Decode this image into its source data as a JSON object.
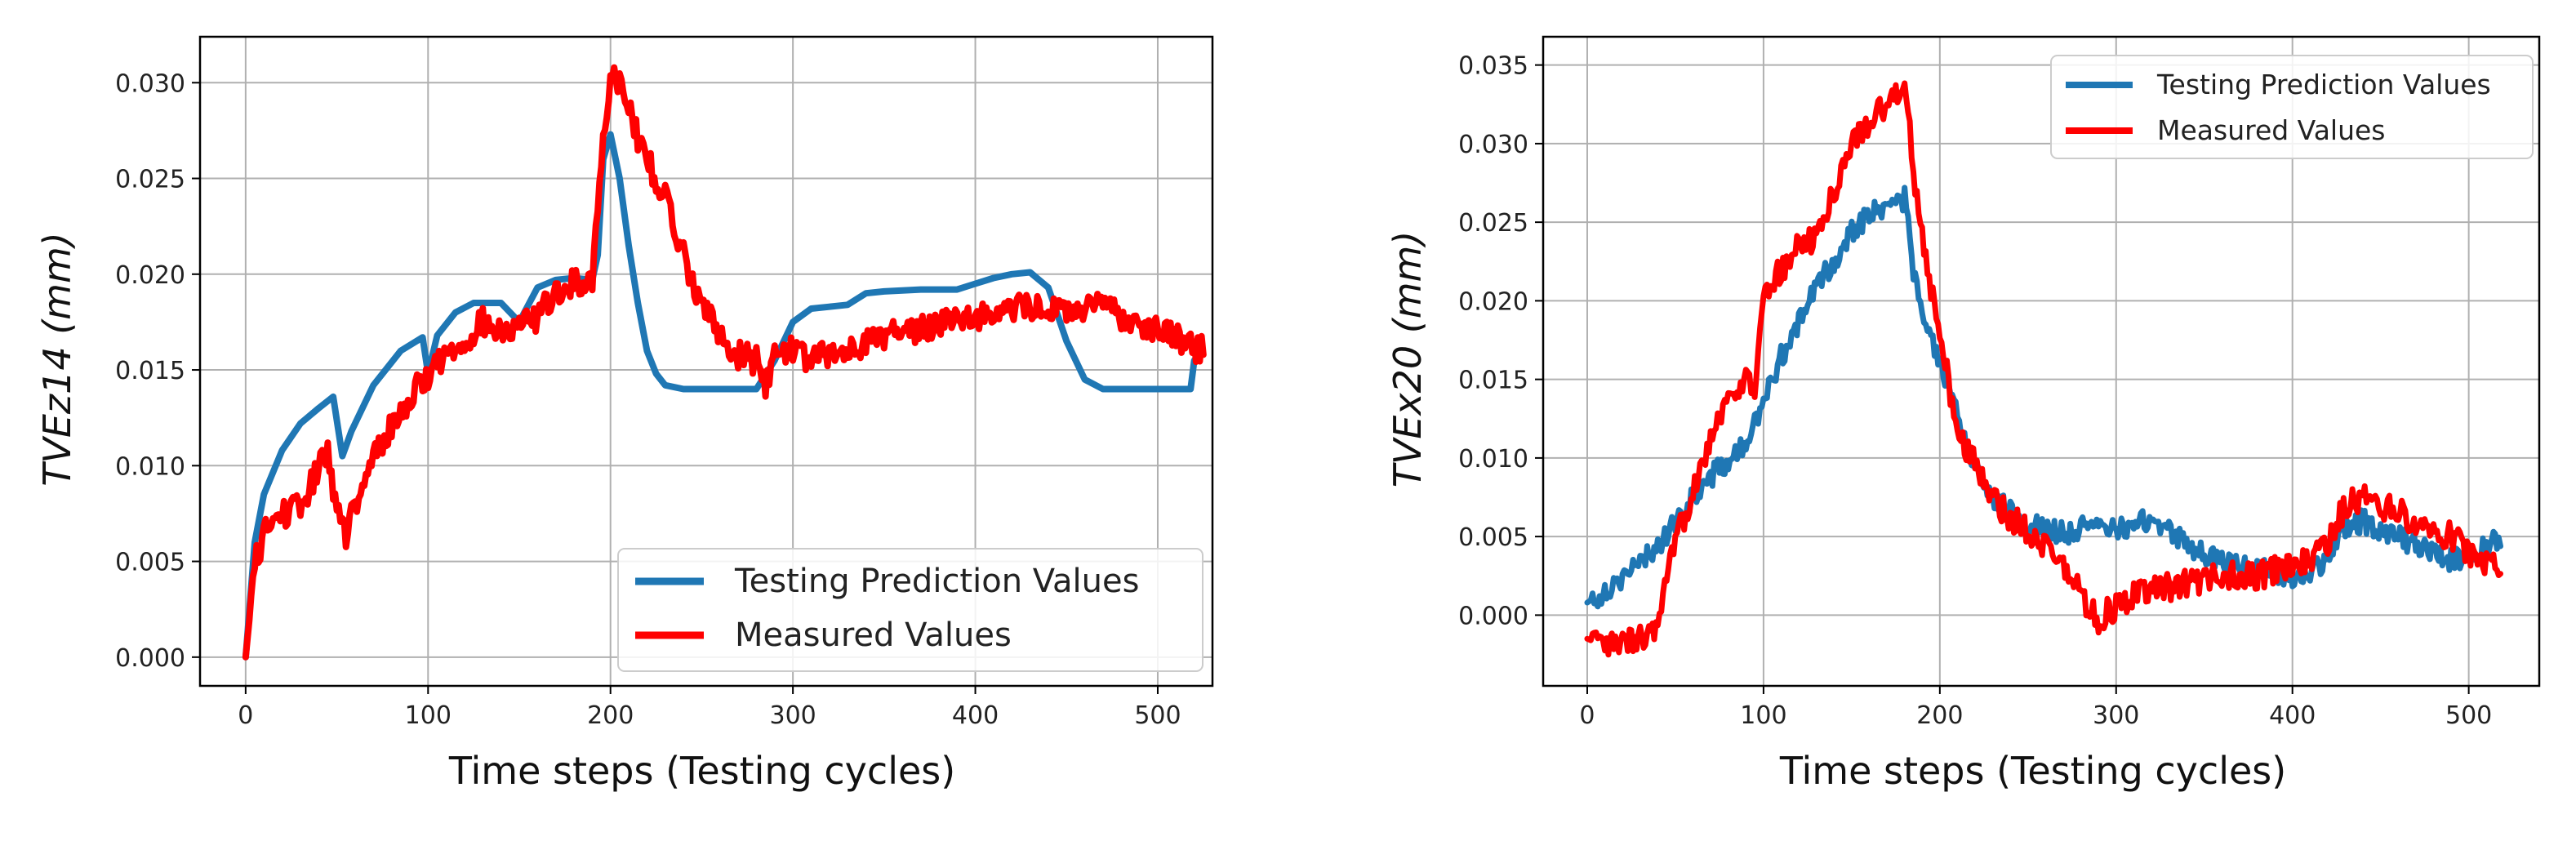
{
  "chart_data": [
    {
      "type": "line",
      "xlabel": "Time steps (Testing cycles)",
      "ylabel": "TVEz14 (mm)",
      "ylabel_base": "TVEz14",
      "ylabel_unit": "(mm)",
      "xlim": [
        -25,
        530
      ],
      "ylim": [
        -0.0015,
        0.0324
      ],
      "xticks": [
        0,
        100,
        200,
        300,
        400,
        500
      ],
      "xtick_labels": [
        "0",
        "100",
        "200",
        "300",
        "400",
        "500"
      ],
      "yticks": [
        0,
        0.005,
        0.01,
        0.015,
        0.02,
        0.025,
        0.03
      ],
      "ytick_labels": [
        "0.000",
        "0.005",
        "0.010",
        "0.015",
        "0.020",
        "0.025",
        "0.030"
      ],
      "grid": true,
      "legend_position": "lower-right",
      "series": [
        {
          "name": "Testing Prediction Values",
          "color": "#1f77b4",
          "x": [
            0,
            5,
            10,
            20,
            30,
            40,
            48,
            53,
            58,
            70,
            85,
            97,
            100,
            105,
            115,
            125,
            140,
            150,
            160,
            170,
            180,
            190,
            193,
            196,
            200,
            205,
            210,
            215,
            220,
            225,
            230,
            240,
            250,
            260,
            270,
            280,
            290,
            300,
            310,
            320,
            330,
            340,
            350,
            370,
            390,
            400,
            410,
            420,
            430,
            440,
            450,
            460,
            470,
            480,
            490,
            500,
            510,
            515,
            518,
            520,
            523
          ],
          "values": [
            0.0,
            0.006,
            0.0085,
            0.0108,
            0.0122,
            0.013,
            0.0136,
            0.0105,
            0.0118,
            0.0142,
            0.016,
            0.0167,
            0.0148,
            0.0168,
            0.018,
            0.0185,
            0.0185,
            0.0175,
            0.0193,
            0.0197,
            0.0198,
            0.0197,
            0.021,
            0.026,
            0.0273,
            0.025,
            0.0215,
            0.0185,
            0.016,
            0.0148,
            0.0142,
            0.014,
            0.014,
            0.014,
            0.014,
            0.014,
            0.0155,
            0.0175,
            0.0182,
            0.0183,
            0.0184,
            0.019,
            0.0191,
            0.0192,
            0.0192,
            0.0195,
            0.0198,
            0.02,
            0.0201,
            0.0193,
            0.0165,
            0.0145,
            0.014,
            0.014,
            0.014,
            0.014,
            0.014,
            0.014,
            0.014,
            0.0155,
            0.0157
          ]
        },
        {
          "name": "Measured Values",
          "color": "#ff0000",
          "x": [
            0,
            5,
            10,
            20,
            30,
            40,
            45,
            50,
            55,
            60,
            65,
            70,
            80,
            90,
            100,
            110,
            120,
            130,
            140,
            150,
            160,
            170,
            180,
            190,
            195,
            200,
            205,
            210,
            215,
            220,
            230,
            240,
            250,
            260,
            270,
            280,
            285,
            290,
            300,
            310,
            320,
            330,
            340,
            350,
            360,
            370,
            380,
            390,
            400,
            410,
            420,
            430,
            440,
            450,
            460,
            470,
            480,
            490,
            500,
            510,
            520,
            525
          ],
          "values": [
            0.0,
            0.0048,
            0.0065,
            0.0075,
            0.0078,
            0.0098,
            0.011,
            0.0075,
            0.0065,
            0.0078,
            0.0088,
            0.0105,
            0.012,
            0.0135,
            0.0148,
            0.0158,
            0.0165,
            0.0175,
            0.0168,
            0.0172,
            0.0178,
            0.019,
            0.0195,
            0.0198,
            0.026,
            0.0305,
            0.0302,
            0.029,
            0.027,
            0.026,
            0.024,
            0.021,
            0.0185,
            0.0168,
            0.0158,
            0.0155,
            0.0142,
            0.0158,
            0.0162,
            0.0155,
            0.0158,
            0.016,
            0.0165,
            0.0168,
            0.017,
            0.0172,
            0.0175,
            0.0178,
            0.0178,
            0.018,
            0.0182,
            0.0183,
            0.0182,
            0.018,
            0.0182,
            0.0183,
            0.0178,
            0.0175,
            0.0172,
            0.0168,
            0.016,
            0.0163
          ]
        }
      ]
    },
    {
      "type": "line",
      "xlabel": "Time steps (Testing cycles)",
      "ylabel": "TVEx20 (mm)",
      "ylabel_base": "TVEx20",
      "ylabel_unit": "(mm)",
      "xlim": [
        -25,
        540
      ],
      "ylim": [
        -0.0045,
        0.0368
      ],
      "xticks": [
        0,
        100,
        200,
        300,
        400,
        500
      ],
      "xtick_labels": [
        "0",
        "100",
        "200",
        "300",
        "400",
        "500"
      ],
      "yticks": [
        0,
        0.005,
        0.01,
        0.015,
        0.02,
        0.025,
        0.03,
        0.035
      ],
      "ytick_labels": [
        "0.000",
        "0.005",
        "0.010",
        "0.015",
        "0.020",
        "0.025",
        "0.030",
        "0.035"
      ],
      "grid": true,
      "legend_position": "top-right",
      "series": [
        {
          "name": "Testing Prediction Values",
          "color": "#1f77b4",
          "x": [
            0,
            10,
            20,
            30,
            40,
            50,
            60,
            70,
            80,
            90,
            100,
            110,
            120,
            130,
            140,
            150,
            160,
            170,
            180,
            185,
            190,
            200,
            210,
            220,
            230,
            240,
            250,
            260,
            270,
            280,
            290,
            300,
            310,
            320,
            330,
            340,
            350,
            360,
            370,
            380,
            390,
            400,
            410,
            420,
            430,
            440,
            450,
            460,
            470,
            480,
            490,
            500,
            510,
            518
          ],
          "values": [
            0.0008,
            0.0015,
            0.0025,
            0.0032,
            0.0045,
            0.0058,
            0.0075,
            0.0088,
            0.0098,
            0.0108,
            0.0135,
            0.0165,
            0.0185,
            0.021,
            0.0225,
            0.0245,
            0.0255,
            0.026,
            0.0265,
            0.022,
            0.019,
            0.016,
            0.0125,
            0.0095,
            0.0075,
            0.0065,
            0.0058,
            0.0055,
            0.0052,
            0.0055,
            0.0055,
            0.0055,
            0.0058,
            0.006,
            0.0055,
            0.0045,
            0.0038,
            0.0035,
            0.0032,
            0.003,
            0.0028,
            0.0025,
            0.0028,
            0.0035,
            0.0055,
            0.006,
            0.0055,
            0.005,
            0.0045,
            0.004,
            0.0035,
            0.0038,
            0.0045,
            0.005
          ]
        },
        {
          "name": "Measured Values",
          "color": "#ff0000",
          "x": [
            0,
            10,
            20,
            30,
            40,
            45,
            50,
            60,
            70,
            80,
            90,
            95,
            100,
            110,
            120,
            130,
            140,
            150,
            160,
            170,
            175,
            180,
            185,
            190,
            200,
            210,
            220,
            230,
            240,
            250,
            260,
            270,
            280,
            285,
            290,
            300,
            310,
            320,
            330,
            340,
            350,
            360,
            370,
            380,
            390,
            400,
            410,
            420,
            430,
            440,
            450,
            460,
            470,
            480,
            490,
            500,
            510,
            518
          ],
          "values": [
            -0.0015,
            -0.002,
            -0.0018,
            -0.0015,
            -0.001,
            0.002,
            0.0045,
            0.008,
            0.0115,
            0.0138,
            0.015,
            0.0145,
            0.02,
            0.022,
            0.0235,
            0.024,
            0.027,
            0.03,
            0.0315,
            0.0325,
            0.033,
            0.0345,
            0.0285,
            0.024,
            0.0175,
            0.012,
            0.0095,
            0.0075,
            0.0062,
            0.0055,
            0.0045,
            0.003,
            0.0015,
            0.0002,
            -0.0002,
            0.0005,
            0.0012,
            0.0015,
            0.0018,
            0.002,
            0.0022,
            0.0025,
            0.0025,
            0.0025,
            0.0028,
            0.003,
            0.0035,
            0.0045,
            0.007,
            0.0075,
            0.007,
            0.0065,
            0.006,
            0.0055,
            0.005,
            0.004,
            0.0035,
            0.003
          ]
        }
      ]
    }
  ]
}
